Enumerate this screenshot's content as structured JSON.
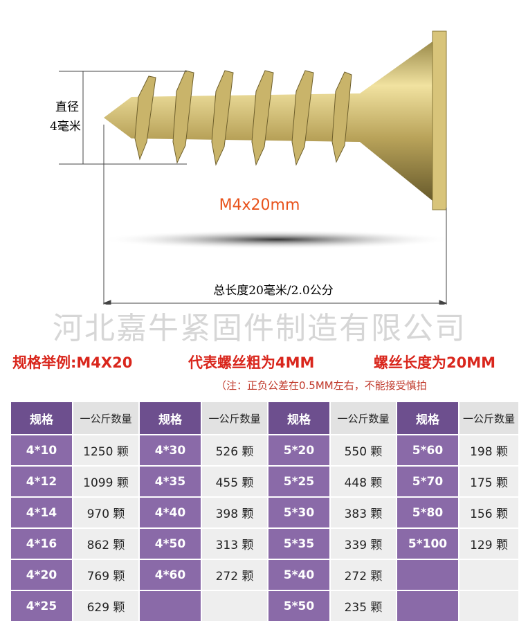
{
  "figure": {
    "diameter_label": [
      "直径",
      "4毫米"
    ],
    "model": "M4x20mm",
    "length_label": "总长度20毫米/2.0公分"
  },
  "watermark": "河北嘉牛紧固件制造有限公司",
  "spec_line": {
    "example": "规格举例:M4X20",
    "thickness": "代表螺丝粗为4MM",
    "length": "螺丝长度为20MM"
  },
  "note": "（注：正负公差在0.5MM左右，不能接受慎拍",
  "table": {
    "columns": [
      "规格",
      "一公斤数量",
      "规格",
      "一公斤数量",
      "规格",
      "一公斤数量",
      "规格",
      "一公斤数量"
    ],
    "rows": [
      [
        "4*10",
        "1250 颗",
        "4*30",
        "526 颗",
        "5*20",
        "550 颗",
        "5*60",
        "198 颗"
      ],
      [
        "4*12",
        "1099 颗",
        "4*35",
        "455 颗",
        "5*25",
        "448 颗",
        "5*70",
        "175 颗"
      ],
      [
        "4*14",
        "970 颗",
        "4*40",
        "398 颗",
        "5*30",
        "383 颗",
        "5*80",
        "156 颗"
      ],
      [
        "4*16",
        "862 颗",
        "4*50",
        "313 颗",
        "5*35",
        "339 颗",
        "5*100",
        "129 颗"
      ],
      [
        "4*20",
        "769 颗",
        "4*60",
        "272 颗",
        "5*40",
        "272 颗",
        null,
        null
      ],
      [
        "4*25",
        "629 颗",
        null,
        null,
        "5*50",
        "235 颗",
        null,
        null
      ]
    ]
  }
}
